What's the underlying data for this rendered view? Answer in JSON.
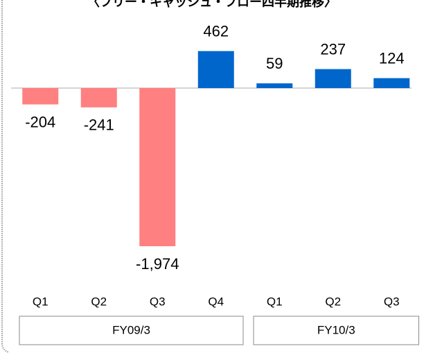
{
  "chart_data": {
    "type": "bar",
    "title": "〈フリー・キャッシュ・フロー四半期推移〉",
    "categories": [
      "Q1",
      "Q2",
      "Q3",
      "Q4",
      "Q1",
      "Q2",
      "Q3"
    ],
    "values": [
      -204,
      -241,
      -1974,
      462,
      59,
      237,
      124
    ],
    "value_labels": [
      "-204",
      "-241",
      "-1,974",
      "462",
      "59",
      "237",
      "124"
    ],
    "colors": [
      "#ff8080",
      "#ff8080",
      "#ff8080",
      "#0066cc",
      "#0066cc",
      "#0066cc",
      "#0066cc"
    ],
    "groups": [
      {
        "name": "FY09/3",
        "count": 4
      },
      {
        "name": "FY10/3",
        "count": 3
      }
    ]
  }
}
